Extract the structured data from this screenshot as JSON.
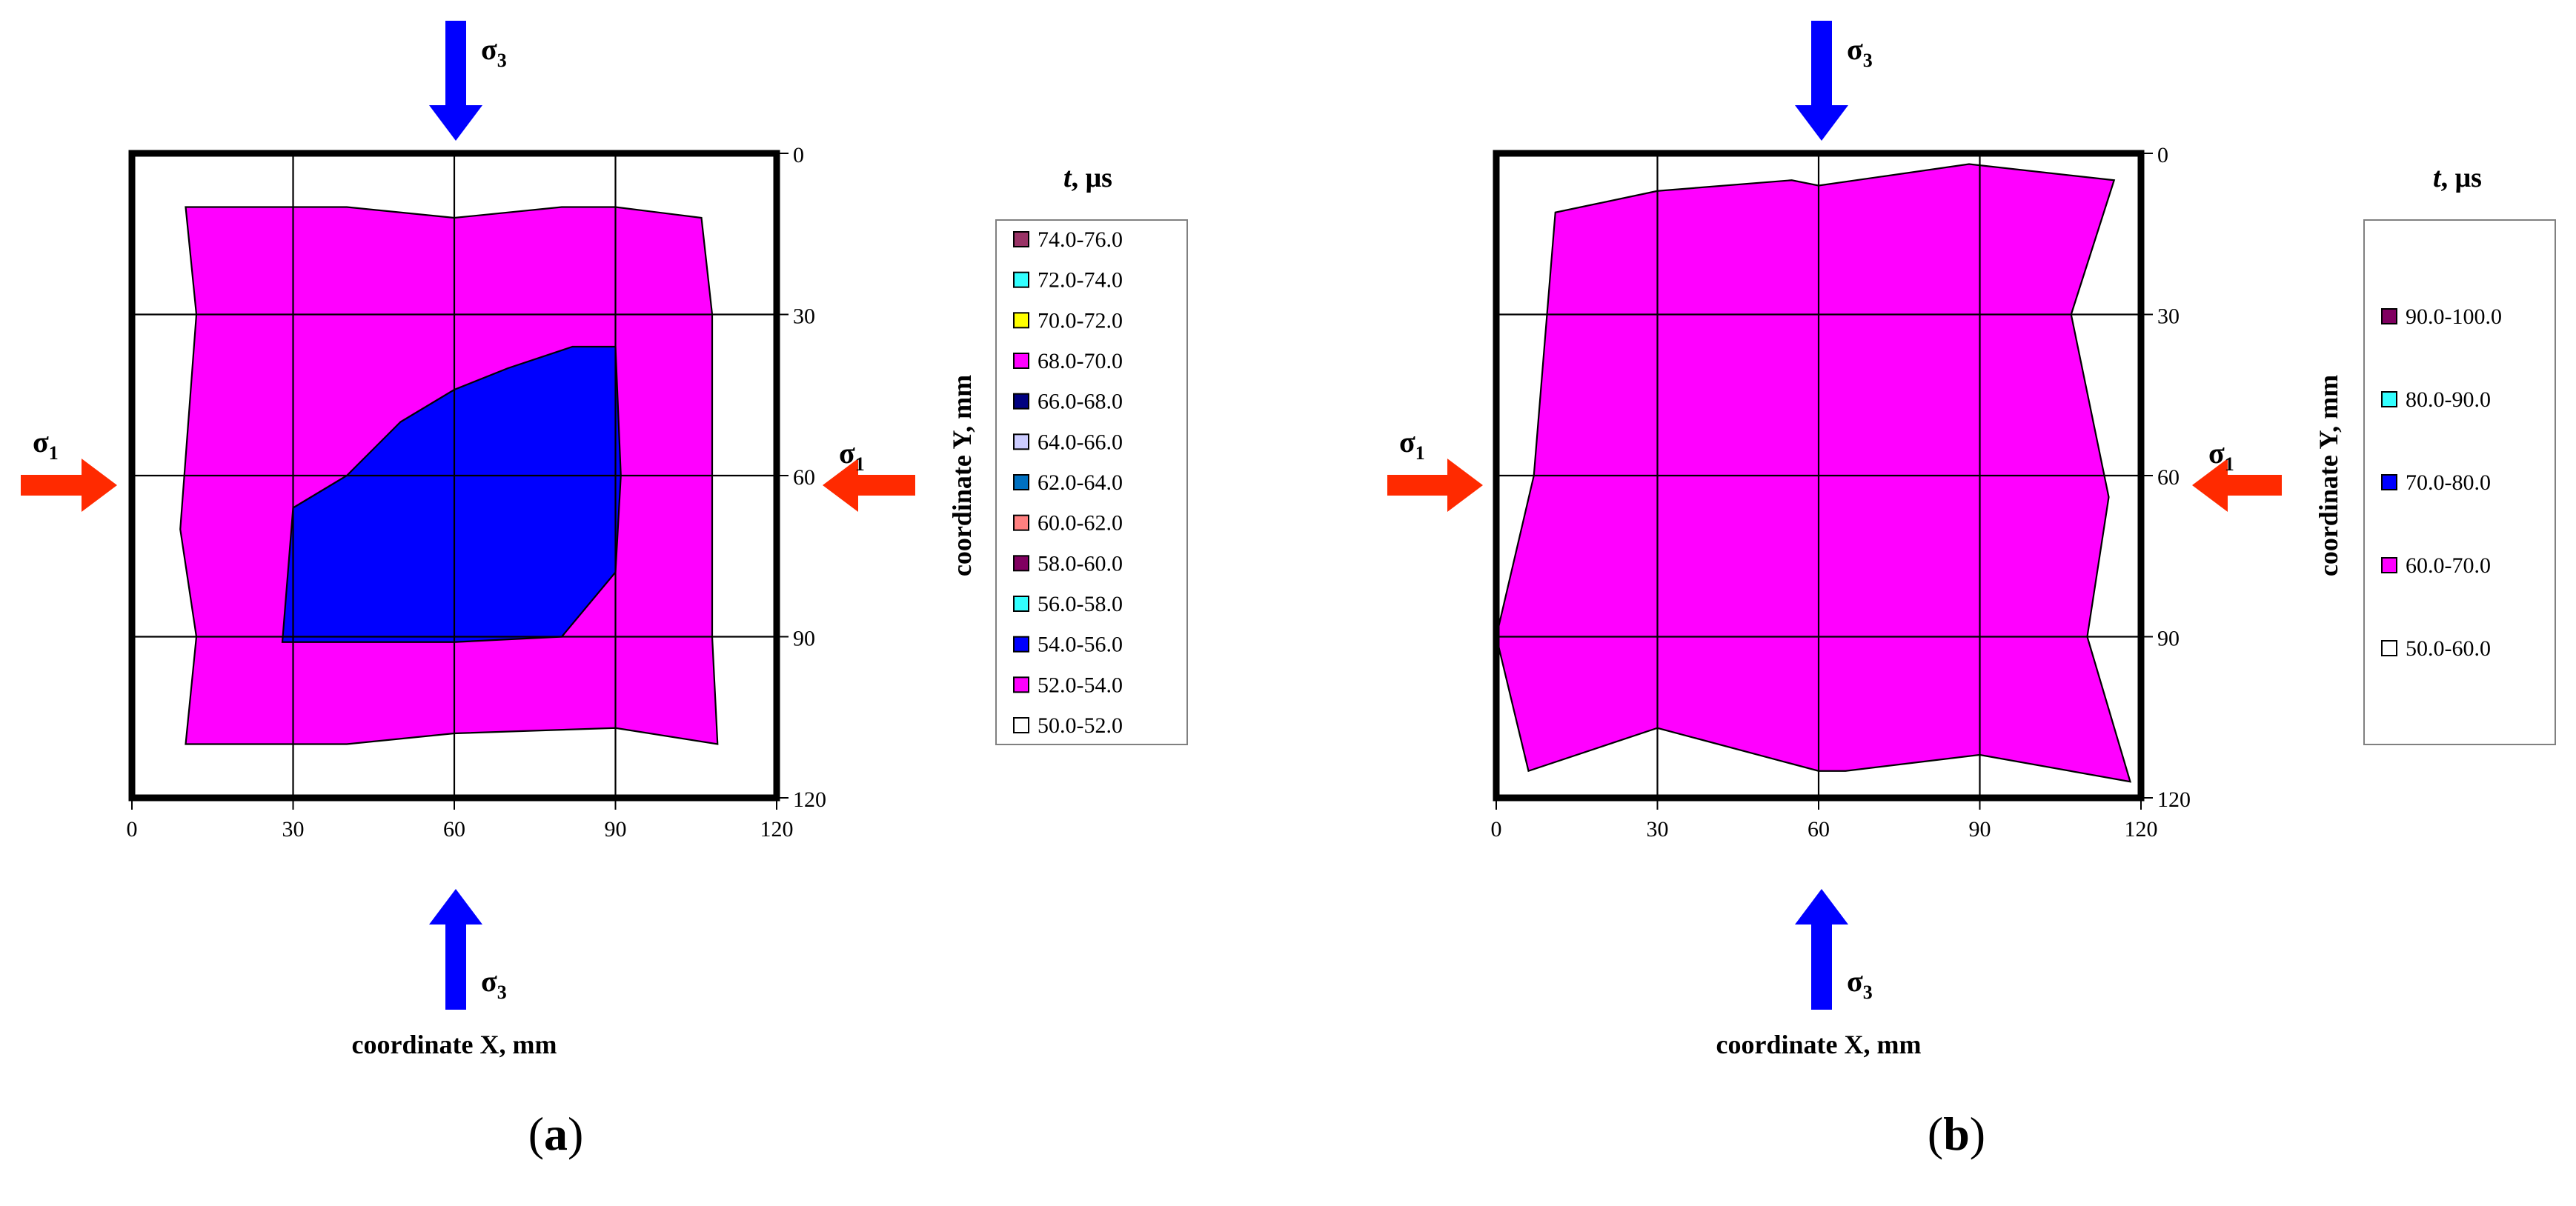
{
  "figure": {
    "panels": [
      {
        "panel_label": "(a)",
        "xlabel": "coordinate X, mm",
        "ylabel": "coordinate Y, mm",
        "stress_labels": {
          "sigma1": "σ",
          "sigma1_sub": "1",
          "sigma3": "σ",
          "sigma3_sub": "3"
        },
        "legend_title_var": "t",
        "legend_title_unit": ", μs"
      },
      {
        "panel_label": "(b)",
        "xlabel": "coordinate X, mm",
        "ylabel": "coordinate Y, mm",
        "stress_labels": {
          "sigma1": "σ",
          "sigma1_sub": "1",
          "sigma3": "σ",
          "sigma3_sub": "3"
        },
        "legend_title_var": "t",
        "legend_title_unit": ", μs"
      }
    ]
  },
  "colors": {
    "sigma1_arrow": "#ff2a00",
    "sigma3_arrow": "#0000ff",
    "frame": "#000000"
  },
  "chart_data": [
    {
      "type": "contour",
      "panel": "(a)",
      "xlabel": "coordinate X, mm",
      "ylabel": "coordinate Y, mm",
      "xlim": [
        0,
        120
      ],
      "ylim": [
        0,
        120
      ],
      "y_inverted": true,
      "x_ticks": [
        "0",
        "30",
        "60",
        "90",
        "120"
      ],
      "y_ticks": [
        "0",
        "30",
        "60",
        "90",
        "120"
      ],
      "grid": true,
      "legend_position": "right",
      "legend_spacing": "compact",
      "legend": [
        {
          "label": "74.0-76.0",
          "color": "#993366"
        },
        {
          "label": "72.0-74.0",
          "color": "#33ffff"
        },
        {
          "label": "70.0-72.0",
          "color": "#ffff00"
        },
        {
          "label": "68.0-70.0",
          "color": "#ff00ff"
        },
        {
          "label": "66.0-68.0",
          "color": "#000080"
        },
        {
          "label": "64.0-66.0",
          "color": "#ccccff"
        },
        {
          "label": "62.0-64.0",
          "color": "#0070c0"
        },
        {
          "label": "60.0-62.0",
          "color": "#ff8080"
        },
        {
          "label": "58.0-60.0",
          "color": "#800060"
        },
        {
          "label": "56.0-58.0",
          "color": "#33ffff"
        },
        {
          "label": "54.0-56.0",
          "color": "#0000ff"
        },
        {
          "label": "52.0-54.0",
          "color": "#ff00ff"
        },
        {
          "label": "50.0-52.0",
          "color": "#ffffff"
        }
      ],
      "regions": [
        {
          "range": "52.0-54.0",
          "color": "#ff00ff",
          "points": [
            [
              10,
              10
            ],
            [
              40,
              10
            ],
            [
              60,
              12
            ],
            [
              80,
              10
            ],
            [
              90,
              10
            ],
            [
              106,
              12
            ],
            [
              108,
              30
            ],
            [
              108,
              60
            ],
            [
              108,
              90
            ],
            [
              109,
              110
            ],
            [
              90,
              107
            ],
            [
              60,
              108
            ],
            [
              40,
              110
            ],
            [
              10,
              110
            ],
            [
              12,
              90
            ],
            [
              9,
              70
            ],
            [
              12,
              30
            ]
          ]
        },
        {
          "range": "54.0-56.0",
          "color": "#0000ff",
          "points": [
            [
              30,
              66
            ],
            [
              40,
              60
            ],
            [
              50,
              50
            ],
            [
              60,
              44
            ],
            [
              70,
              40
            ],
            [
              82,
              36
            ],
            [
              90,
              36
            ],
            [
              91,
              60
            ],
            [
              90,
              78
            ],
            [
              80,
              90
            ],
            [
              60,
              91
            ],
            [
              30,
              91
            ],
            [
              28,
              91
            ]
          ]
        }
      ]
    },
    {
      "type": "contour",
      "panel": "(b)",
      "xlabel": "coordinate X, mm",
      "ylabel": "coordinate Y, mm",
      "xlim": [
        0,
        120
      ],
      "ylim": [
        0,
        120
      ],
      "y_inverted": true,
      "x_ticks": [
        "0",
        "30",
        "60",
        "90",
        "120"
      ],
      "y_ticks": [
        "0",
        "30",
        "60",
        "90",
        "120"
      ],
      "grid": true,
      "legend_position": "right",
      "legend_spacing": "wide",
      "legend": [
        {
          "label": "90.0-100.0",
          "color": "#800060"
        },
        {
          "label": "80.0-90.0",
          "color": "#33ffff"
        },
        {
          "label": "70.0-80.0",
          "color": "#0000ff"
        },
        {
          "label": "60.0-70.0",
          "color": "#ff00ff"
        },
        {
          "label": "50.0-60.0",
          "color": "#ffffff"
        }
      ],
      "regions": [
        {
          "range": "60.0-70.0",
          "color": "#ff00ff",
          "points": [
            [
              11,
              11
            ],
            [
              30,
              7
            ],
            [
              55,
              5
            ],
            [
              60,
              6
            ],
            [
              88,
              2
            ],
            [
              115,
              5
            ],
            [
              107,
              30
            ],
            [
              114,
              64
            ],
            [
              110,
              90
            ],
            [
              118,
              117
            ],
            [
              90,
              112
            ],
            [
              65,
              115
            ],
            [
              60,
              115
            ],
            [
              30,
              107
            ],
            [
              6,
              115
            ],
            [
              0,
              90
            ],
            [
              7,
              60
            ]
          ]
        }
      ]
    }
  ]
}
